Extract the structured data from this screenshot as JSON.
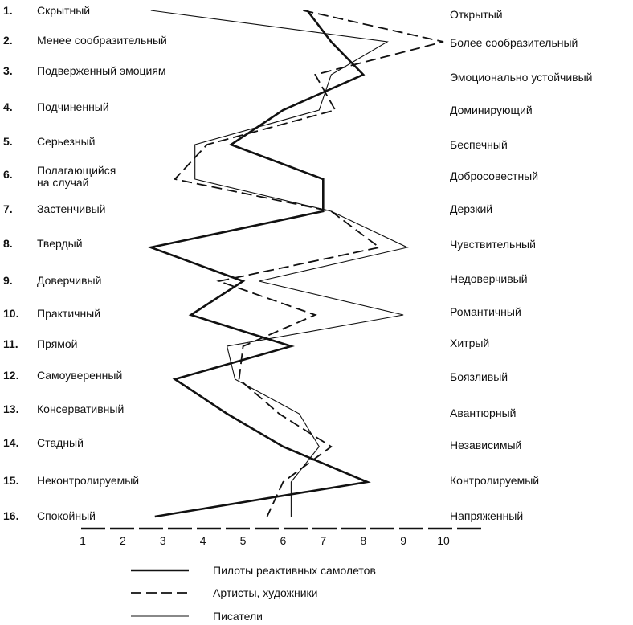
{
  "chart_data": {
    "type": "line",
    "orientation": "vertical-profile",
    "x_ticks": [
      "1",
      "2",
      "3",
      "4",
      "5",
      "6",
      "7",
      "8",
      "9",
      "10"
    ],
    "xlim": [
      1,
      10
    ],
    "grid": false,
    "legend_position": "bottom",
    "row_numbers": [
      "1.",
      "2.",
      "3.",
      "4.",
      "5.",
      "6.",
      "7.",
      "8.",
      "9.",
      "10.",
      "11.",
      "12.",
      "13.",
      "14.",
      "15.",
      "16."
    ],
    "left_labels": [
      [
        "Скрытный"
      ],
      [
        "Менее сообразительный"
      ],
      [
        "Подверженный  эмоциям"
      ],
      [
        "Подчиненный"
      ],
      [
        "Серьезный"
      ],
      [
        "Полагающийся",
        "на случай"
      ],
      [
        "Застенчивый"
      ],
      [
        "Твердый"
      ],
      [
        "Доверчивый"
      ],
      [
        "Практичный"
      ],
      [
        "Прямой"
      ],
      [
        "Самоуверенный"
      ],
      [
        "Консервативный"
      ],
      [
        "Стадный"
      ],
      [
        "Неконтролируемый"
      ],
      [
        "Спокойный"
      ]
    ],
    "right_labels": [
      "Открытый",
      "Более  сообразительный",
      "Эмоционально  устойчивый",
      "Доминирующий",
      "Беспечный",
      "Добросовестный",
      "Дерзкий",
      "Чувствительный",
      "Недоверчивый",
      "Романтичный",
      "Хитрый",
      "Боязливый",
      "Авантюрный",
      "Независимый",
      "Контролируемый",
      "Напряженный"
    ],
    "series": [
      {
        "name": "Пилоты   реактивных самолетов",
        "style": "thick",
        "values": [
          6.6,
          7.2,
          8.0,
          6.0,
          4.7,
          7.0,
          7.0,
          2.7,
          5.0,
          3.7,
          6.2,
          3.3,
          4.6,
          6.0,
          8.1,
          2.8
        ]
      },
      {
        "name": "Артисты, художники",
        "style": "dashed",
        "values": [
          6.5,
          10.0,
          6.8,
          7.3,
          4.1,
          3.3,
          7.2,
          8.4,
          4.4,
          6.8,
          5.0,
          4.9,
          5.9,
          7.2,
          6.0,
          5.6
        ]
      },
      {
        "name": "Писатели",
        "style": "thin",
        "values": [
          2.7,
          8.6,
          7.2,
          6.9,
          3.8,
          3.8,
          7.2,
          9.1,
          5.4,
          9.0,
          4.6,
          4.8,
          6.4,
          6.9,
          6.2,
          6.2
        ]
      }
    ]
  },
  "colors": {
    "line": "#111111",
    "background": "#ffffff"
  }
}
